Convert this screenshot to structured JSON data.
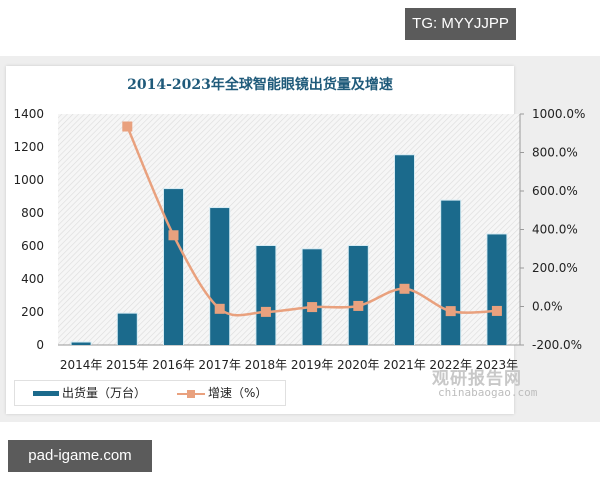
{
  "watermarks": {
    "top": "TG: MYYJJPP",
    "bottom": "pad-igame.com"
  },
  "logo": {
    "cn": "观研报告网",
    "en": "chinabaogao.com"
  },
  "colors": {
    "bar": "#1b6a8c",
    "line": "#e9a17e",
    "title": "#1f5a7a"
  },
  "chart_data": {
    "type": "bar",
    "title": "2014-2023年全球智能眼镜出货量及增速",
    "categories": [
      "2014年",
      "2015年",
      "2016年",
      "2017年",
      "2018年",
      "2019年",
      "2020年",
      "2021年",
      "2022年",
      "2023年"
    ],
    "series": [
      {
        "name": "出货量（万台）",
        "type": "bar",
        "axis": "left",
        "values": [
          15,
          190,
          945,
          830,
          600,
          580,
          600,
          1150,
          875,
          670
        ]
      },
      {
        "name": "增速（%）",
        "type": "line",
        "axis": "right",
        "values": [
          null,
          935.0,
          370.0,
          -12.0,
          -28.0,
          -3.0,
          3.0,
          92.0,
          -24.0,
          -23.0
        ]
      }
    ],
    "left_axis": {
      "ylim": [
        0,
        1400
      ],
      "ticks": [
        "0",
        "200",
        "400",
        "600",
        "800",
        "1000",
        "1200",
        "1400"
      ]
    },
    "right_axis": {
      "ylim": [
        -200,
        1000
      ],
      "ticks": [
        "-200.0%",
        "0.0%",
        "200.0%",
        "400.0%",
        "600.0%",
        "800.0%",
        "1000.0%"
      ]
    },
    "legend": {
      "position": "bottom-left",
      "entries": [
        "出货量（万台）",
        "增速（%）"
      ]
    },
    "grid": false,
    "xlabel": "",
    "ylabel": ""
  }
}
